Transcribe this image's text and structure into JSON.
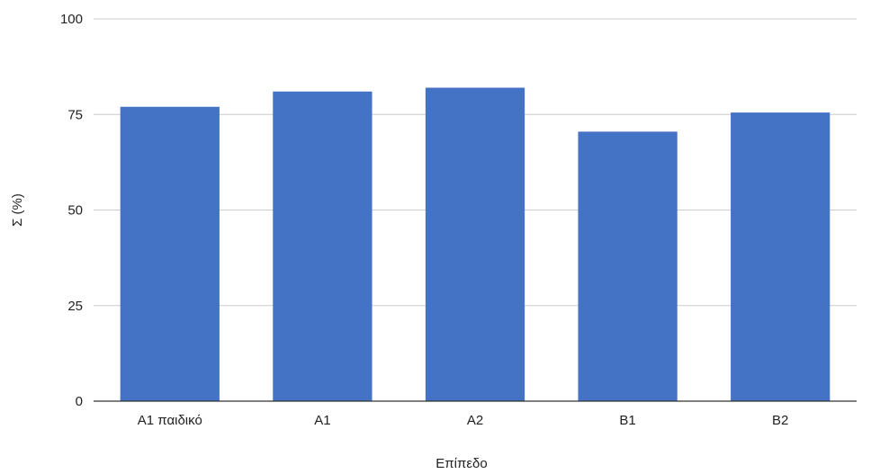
{
  "chart_data": {
    "type": "bar",
    "title": "",
    "xlabel": "Επίπεδο",
    "ylabel": "Σ (%)",
    "categories": [
      "A1 παιδικό",
      "A1",
      "A2",
      "B1",
      "B2"
    ],
    "values": [
      77,
      81,
      82,
      70.5,
      75.5
    ],
    "ylim": [
      0,
      100
    ],
    "yticks": [
      "0",
      "25",
      "50",
      "75",
      "100"
    ],
    "grid": true,
    "legend": "none",
    "colors": {
      "bar": "#4472C4",
      "grid": "#cccccc",
      "axis": "#333333"
    }
  }
}
